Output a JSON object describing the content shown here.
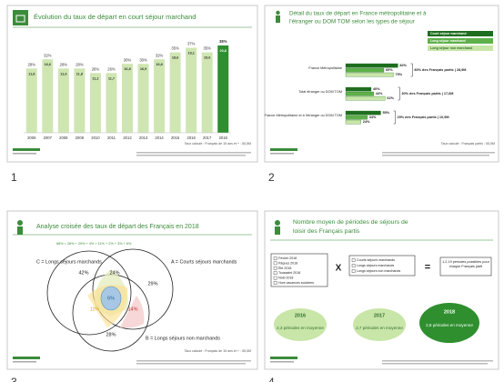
{
  "slides": [
    {
      "number": "1",
      "title": "Évolution du taux de départ en court séjour marchand",
      "chart": {
        "type": "bar",
        "categories": [
          "2006",
          "2007",
          "2008",
          "2009",
          "2010",
          "2011",
          "2012",
          "2013",
          "2014",
          "2015",
          "2016",
          "2017",
          "2018"
        ],
        "values": [
          28,
          32,
          28,
          28,
          26,
          26,
          30,
          30,
          32,
          35,
          37,
          35,
          38
        ],
        "value_labels": [
          "28%",
          "32%",
          "28%",
          "28%",
          "26%",
          "26%",
          "30%",
          "30%",
          "32%",
          "35%",
          "37%",
          "35%",
          "38%"
        ],
        "inner_labels": [
          "11,8",
          "16,6",
          "11,6",
          "11,8",
          "11,2",
          "11,7",
          "16,8",
          "16,9",
          "16,8",
          "18,6",
          "19,1",
          "19,6",
          "20,8"
        ],
        "color": "#cfe6b2",
        "highlight_color": "#2f8f2f"
      },
      "footer": "Taux calculé : Français de 15 ans et + : 55,5M"
    },
    {
      "number": "2",
      "title_lines": [
        "Détail du taux de départ en France métropolitaine et à",
        "l'étranger ou DOM TOM selon les types de séjour"
      ],
      "chart": {
        "type": "hbar",
        "series": [
          {
            "name": "Court séjour marchand",
            "color": "#1f6e1f"
          },
          {
            "name": "Long séjour marchand",
            "color": "#5fb04a"
          },
          {
            "name": "Long séjour non marchand",
            "color": "#c8e6a8"
          }
        ],
        "groups": [
          {
            "label": "France Métropolitaine",
            "values": [
              82,
              60,
              75
            ],
            "value_labels": [
              "82%",
              "60%",
              "75%"
            ],
            "note": "80% des Français partis | 28,9M"
          },
          {
            "label": "Total étranger ou DOM TOM",
            "values": [
              40,
              44,
              62
            ],
            "value_labels": [
              "40%",
              "44%",
              "62%"
            ],
            "note": "30% des Français partis | 17,6M"
          },
          {
            "label": "France Métropolitaine et à l'étranger ou DOM TOM",
            "values": [
              55,
              34,
              24
            ],
            "value_labels": [
              "55%",
              "34%",
              "24%"
            ],
            "note": "29% des Français partis | 10,5M"
          }
        ]
      },
      "footer": "Taux calculé : Français partis : 55,5M"
    },
    {
      "number": "3",
      "title": "Analyse croisée des taux de départ des Français en 2018",
      "formula": "68% = 28% + 29% + 4% + 11% + 2% + 3% + 6%",
      "sets": [
        "C = Longs séjours marchands",
        "A = Courts séjours marchands",
        "B = Longs séjours non marchands"
      ],
      "regions": [
        "42%",
        "24%",
        "29%",
        "11%",
        "6%",
        "14%",
        "28%"
      ],
      "footer": "Taux calculé : Français de 15 ans et + : 55,5M"
    },
    {
      "number": "4",
      "title_lines": [
        "Nombre moyen de périodes de séjours de",
        "loisir des Français partis"
      ],
      "periods": [
        "Février 2018",
        "Pâques 2018",
        "Été 2018",
        "Toussaint 2018",
        "Noël 2018",
        "Hors vacances scolaires"
      ],
      "types": [
        "Courts séjours marchands",
        "Longs séjours marchands",
        "Longs séjours non marchands"
      ],
      "times": "X",
      "equals": "=",
      "result": "1,2,19 périodes possibles pour chaque Français parti",
      "years": [
        {
          "year": "2016",
          "text": "2,3 périodes en moyenne"
        },
        {
          "year": "2017",
          "text": "2,7 périodes en moyenne"
        },
        {
          "year": "2018",
          "text": "2,6 périodes en moyenne"
        }
      ]
    }
  ]
}
